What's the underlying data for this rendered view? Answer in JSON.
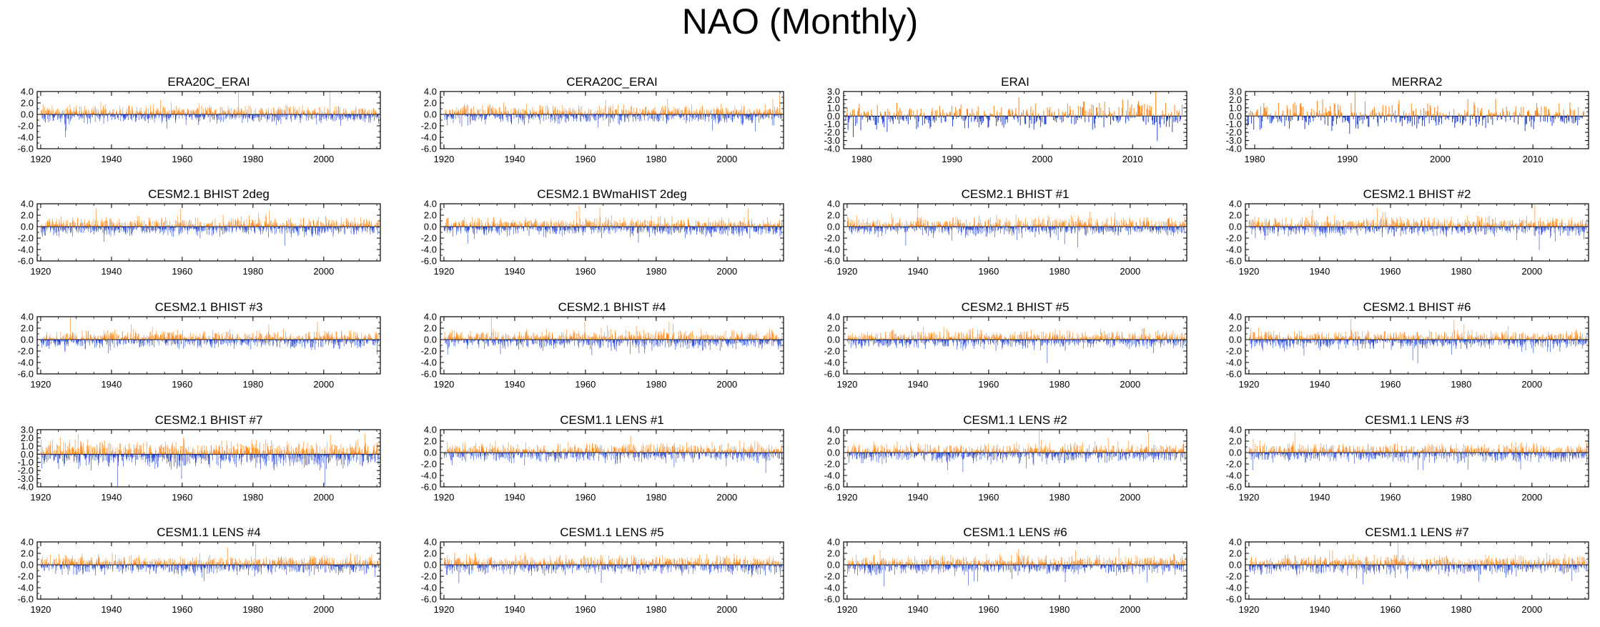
{
  "title": "NAO (Monthly)",
  "colors": {
    "positive": "#ff7f0e",
    "negative": "#1f3fd6",
    "axis": "#000000"
  },
  "chart_data": [
    {
      "title": "ERA20C_ERAI",
      "type": "bar",
      "xlim": [
        1919,
        2016
      ],
      "ylim": [
        -6,
        4
      ],
      "yticks": [
        "4.0",
        "2.0",
        "0.0",
        "-2.0",
        "-4.0",
        "-6.0"
      ],
      "xticks": [
        "1920",
        "1940",
        "1960",
        "1980",
        "2000"
      ],
      "seed": 11,
      "series": "generated monthly NAO index"
    },
    {
      "title": "CERA20C_ERAI",
      "type": "bar",
      "xlim": [
        1919,
        2016
      ],
      "ylim": [
        -6,
        4
      ],
      "yticks": [
        "4.0",
        "2.0",
        "0.0",
        "-2.0",
        "-4.0",
        "-6.0"
      ],
      "xticks": [
        "1920",
        "1940",
        "1960",
        "1980",
        "2000"
      ],
      "seed": 12
    },
    {
      "title": "ERAI",
      "type": "bar",
      "xlim": [
        1978,
        2016
      ],
      "ylim": [
        -4,
        3
      ],
      "yticks": [
        "3.0",
        "2.0",
        "1.0",
        "0.0",
        "-1.0",
        "-2.0",
        "-3.0",
        "-4.0"
      ],
      "xticks": [
        "1980",
        "1990",
        "2000",
        "2010"
      ],
      "seed": 13
    },
    {
      "title": "MERRA2",
      "type": "bar",
      "xlim": [
        1979,
        2016
      ],
      "ylim": [
        -4,
        3
      ],
      "yticks": [
        "3.0",
        "2.0",
        "1.0",
        "0.0",
        "-1.0",
        "-2.0",
        "-3.0",
        "-4.0"
      ],
      "xticks": [
        "1980",
        "1990",
        "2000",
        "2010"
      ],
      "seed": 14
    },
    {
      "title": "CESM2.1 BHIST 2deg",
      "type": "bar",
      "xlim": [
        1919,
        2016
      ],
      "ylim": [
        -6,
        4
      ],
      "yticks": [
        "4.0",
        "2.0",
        "0.0",
        "-2.0",
        "-4.0",
        "-6.0"
      ],
      "xticks": [
        "1920",
        "1940",
        "1960",
        "1980",
        "2000"
      ],
      "seed": 21
    },
    {
      "title": "CESM2.1 BWmaHIST 2deg",
      "type": "bar",
      "xlim": [
        1919,
        2016
      ],
      "ylim": [
        -6,
        4
      ],
      "yticks": [
        "4.0",
        "2.0",
        "0.0",
        "-2.0",
        "-4.0",
        "-6.0"
      ],
      "xticks": [
        "1920",
        "1940",
        "1960",
        "1980",
        "2000"
      ],
      "seed": 22
    },
    {
      "title": "CESM2.1 BHIST #1",
      "type": "bar",
      "xlim": [
        1919,
        2016
      ],
      "ylim": [
        -6,
        4
      ],
      "yticks": [
        "4.0",
        "2.0",
        "0.0",
        "-2.0",
        "-4.0",
        "-6.0"
      ],
      "xticks": [
        "1920",
        "1940",
        "1960",
        "1980",
        "2000"
      ],
      "seed": 23
    },
    {
      "title": "CESM2.1 BHIST #2",
      "type": "bar",
      "xlim": [
        1919,
        2016
      ],
      "ylim": [
        -6,
        4
      ],
      "yticks": [
        "4.0",
        "2.0",
        "0.0",
        "-2.0",
        "-4.0",
        "-6.0"
      ],
      "xticks": [
        "1920",
        "1940",
        "1960",
        "1980",
        "2000"
      ],
      "seed": 24
    },
    {
      "title": "CESM2.1 BHIST #3",
      "type": "bar",
      "xlim": [
        1919,
        2016
      ],
      "ylim": [
        -6,
        4
      ],
      "yticks": [
        "4.0",
        "2.0",
        "0.0",
        "-2.0",
        "-4.0",
        "-6.0"
      ],
      "xticks": [
        "1920",
        "1940",
        "1960",
        "1980",
        "2000"
      ],
      "seed": 31
    },
    {
      "title": "CESM2.1 BHIST #4",
      "type": "bar",
      "xlim": [
        1919,
        2016
      ],
      "ylim": [
        -6,
        4
      ],
      "yticks": [
        "4.0",
        "2.0",
        "0.0",
        "-2.0",
        "-4.0",
        "-6.0"
      ],
      "xticks": [
        "1920",
        "1940",
        "1960",
        "1980",
        "2000"
      ],
      "seed": 32
    },
    {
      "title": "CESM2.1 BHIST #5",
      "type": "bar",
      "xlim": [
        1919,
        2016
      ],
      "ylim": [
        -6,
        4
      ],
      "yticks": [
        "4.0",
        "2.0",
        "0.0",
        "-2.0",
        "-4.0",
        "-6.0"
      ],
      "xticks": [
        "1920",
        "1940",
        "1960",
        "1980",
        "2000"
      ],
      "seed": 33
    },
    {
      "title": "CESM2.1 BHIST #6",
      "type": "bar",
      "xlim": [
        1919,
        2016
      ],
      "ylim": [
        -6,
        4
      ],
      "yticks": [
        "4.0",
        "2.0",
        "0.0",
        "-2.0",
        "-4.0",
        "-6.0"
      ],
      "xticks": [
        "1920",
        "1940",
        "1960",
        "1980",
        "2000"
      ],
      "seed": 34
    },
    {
      "title": "CESM2.1 BHIST #7",
      "type": "bar",
      "xlim": [
        1919,
        2016
      ],
      "ylim": [
        -4,
        3
      ],
      "yticks": [
        "3.0",
        "2.0",
        "1.0",
        "0.0",
        "-1.0",
        "-2.0",
        "-3.0",
        "-4.0"
      ],
      "xticks": [
        "1920",
        "1940",
        "1960",
        "1980",
        "2000"
      ],
      "seed": 41
    },
    {
      "title": "CESM1.1 LENS #1",
      "type": "bar",
      "xlim": [
        1919,
        2016
      ],
      "ylim": [
        -6,
        4
      ],
      "yticks": [
        "4.0",
        "2.0",
        "0.0",
        "-2.0",
        "-4.0",
        "-6.0"
      ],
      "xticks": [
        "1920",
        "1940",
        "1960",
        "1980",
        "2000"
      ],
      "seed": 42
    },
    {
      "title": "CESM1.1 LENS #2",
      "type": "bar",
      "xlim": [
        1919,
        2016
      ],
      "ylim": [
        -6,
        4
      ],
      "yticks": [
        "4.0",
        "2.0",
        "0.0",
        "-2.0",
        "-4.0",
        "-6.0"
      ],
      "xticks": [
        "1920",
        "1940",
        "1960",
        "1980",
        "2000"
      ],
      "seed": 43
    },
    {
      "title": "CESM1.1 LENS #3",
      "type": "bar",
      "xlim": [
        1919,
        2016
      ],
      "ylim": [
        -6,
        4
      ],
      "yticks": [
        "4.0",
        "2.0",
        "0.0",
        "-2.0",
        "-4.0",
        "-6.0"
      ],
      "xticks": [
        "1920",
        "1940",
        "1960",
        "1980",
        "2000"
      ],
      "seed": 44
    },
    {
      "title": "CESM1.1 LENS #4",
      "type": "bar",
      "xlim": [
        1919,
        2016
      ],
      "ylim": [
        -6,
        4
      ],
      "yticks": [
        "4.0",
        "2.0",
        "0.0",
        "-2.0",
        "-4.0",
        "-6.0"
      ],
      "xticks": [
        "1920",
        "1940",
        "1960",
        "1980",
        "2000"
      ],
      "seed": 51
    },
    {
      "title": "CESM1.1 LENS #5",
      "type": "bar",
      "xlim": [
        1919,
        2016
      ],
      "ylim": [
        -6,
        4
      ],
      "yticks": [
        "4.0",
        "2.0",
        "0.0",
        "-2.0",
        "-4.0",
        "-6.0"
      ],
      "xticks": [
        "1920",
        "1940",
        "1960",
        "1980",
        "2000"
      ],
      "seed": 52
    },
    {
      "title": "CESM1.1 LENS #6",
      "type": "bar",
      "xlim": [
        1919,
        2016
      ],
      "ylim": [
        -6,
        4
      ],
      "yticks": [
        "4.0",
        "2.0",
        "0.0",
        "-2.0",
        "-4.0",
        "-6.0"
      ],
      "xticks": [
        "1920",
        "1940",
        "1960",
        "1980",
        "2000"
      ],
      "seed": 53
    },
    {
      "title": "CESM1.1 LENS #7",
      "type": "bar",
      "xlim": [
        1919,
        2016
      ],
      "ylim": [
        -6,
        4
      ],
      "yticks": [
        "4.0",
        "2.0",
        "0.0",
        "-2.0",
        "-4.0",
        "-6.0"
      ],
      "xticks": [
        "1920",
        "1940",
        "1960",
        "1980",
        "2000"
      ],
      "seed": 54
    }
  ]
}
